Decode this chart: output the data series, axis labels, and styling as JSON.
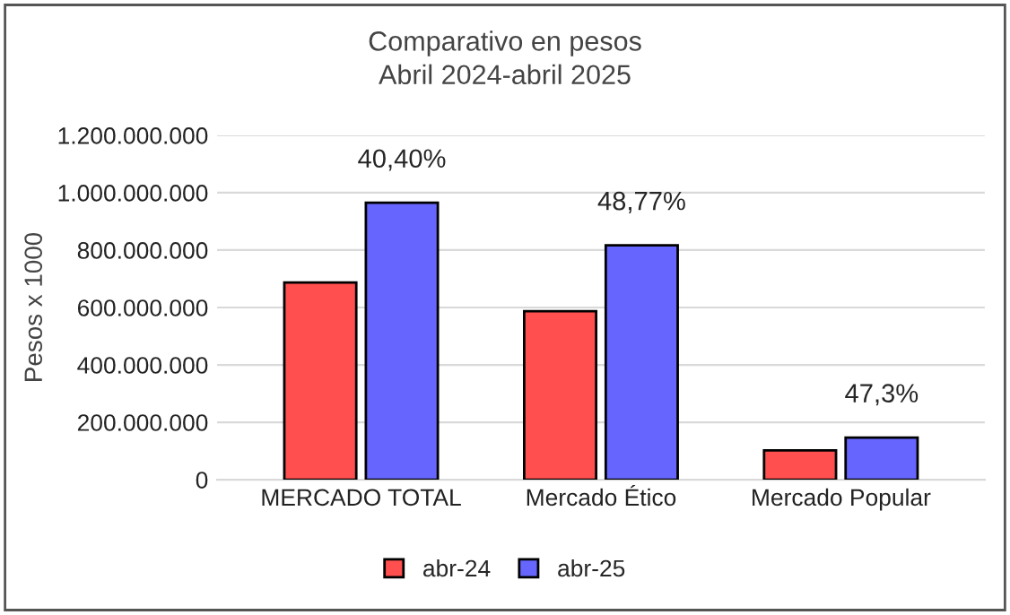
{
  "chart_data": {
    "type": "bar",
    "title": "Comparativo en pesos\nAbril 2024-abril 2025",
    "ylabel": "Pesos x 1000",
    "categories": [
      "MERCADO TOTAL",
      "Mercado Ético",
      "Mercado Popular"
    ],
    "series": [
      {
        "name": "abr-24",
        "color": "#ff4f4f",
        "values": [
          687000000,
          587000000,
          102000000
        ]
      },
      {
        "name": "abr-25",
        "color": "#6666ff",
        "values": [
          965000000,
          817000000,
          147000000
        ]
      }
    ],
    "ylim": [
      0,
      1200000000
    ],
    "yticks": [
      {
        "value": 0,
        "label": "0"
      },
      {
        "value": 200000000,
        "label": "200.000.000"
      },
      {
        "value": 400000000,
        "label": "400.000.000"
      },
      {
        "value": 600000000,
        "label": "600.000.000"
      },
      {
        "value": 800000000,
        "label": "800.000.000"
      },
      {
        "value": 1000000000,
        "label": "1.000.000.000"
      },
      {
        "value": 1200000000,
        "label": "1.200.000.000"
      }
    ],
    "annotations": [
      {
        "text": "40,40%",
        "x": "MERCADO TOTAL",
        "y": 965000000
      },
      {
        "text": "48,77%",
        "x": "Mercado Ético",
        "y": 817000000
      },
      {
        "text": "47,3%",
        "x": "Mercado Popular",
        "y": 147000000
      }
    ],
    "grid": "y",
    "legend": "bottom"
  }
}
